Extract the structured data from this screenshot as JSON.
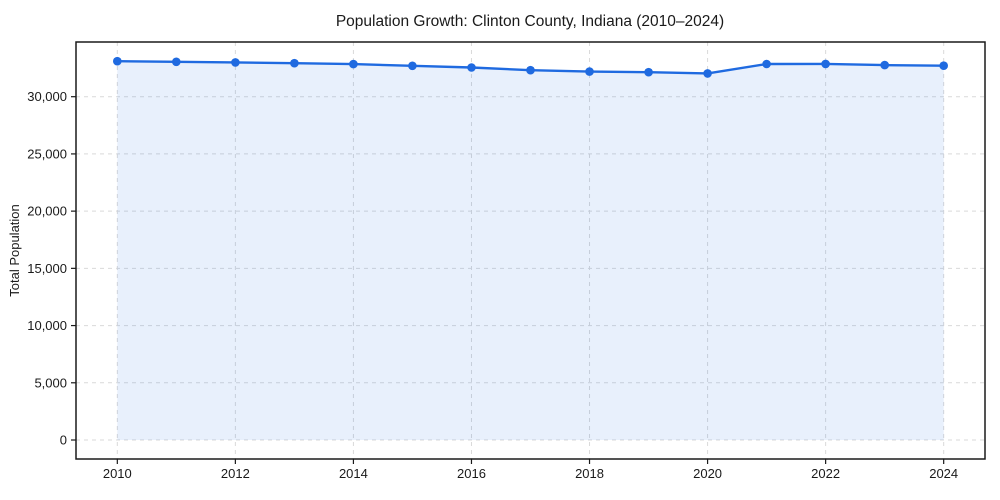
{
  "chart_data": {
    "type": "area",
    "title": "Population Growth: Clinton County, Indiana (2010–2024)",
    "xlabel": "",
    "ylabel": "Total Population",
    "x": [
      2010,
      2011,
      2012,
      2013,
      2014,
      2015,
      2016,
      2017,
      2018,
      2019,
      2020,
      2021,
      2022,
      2023,
      2024
    ],
    "series": [
      {
        "name": "Total Population",
        "values": [
          33100,
          33050,
          33000,
          32930,
          32850,
          32700,
          32550,
          32320,
          32190,
          32140,
          32040,
          32860,
          32870,
          32760,
          32710
        ]
      }
    ],
    "xticks": [
      2010,
      2012,
      2014,
      2016,
      2018,
      2020,
      2022,
      2024
    ],
    "yticks": [
      0,
      5000,
      10000,
      15000,
      20000,
      25000,
      30000
    ],
    "xlim": [
      2009.3,
      2024.7
    ],
    "ylim": [
      -1660,
      34780
    ],
    "grid": true,
    "grid_style": "dashed",
    "legend_position": "none",
    "line_color": "#1f6ae0",
    "fill_below_to": 0,
    "fill_opacity": 0.1,
    "marker": "circle",
    "grid_color": "#d9d9d9",
    "spine_color": "#1a1a1a",
    "text_color": "#1a1a1a",
    "background_color": "#ffffff"
  }
}
